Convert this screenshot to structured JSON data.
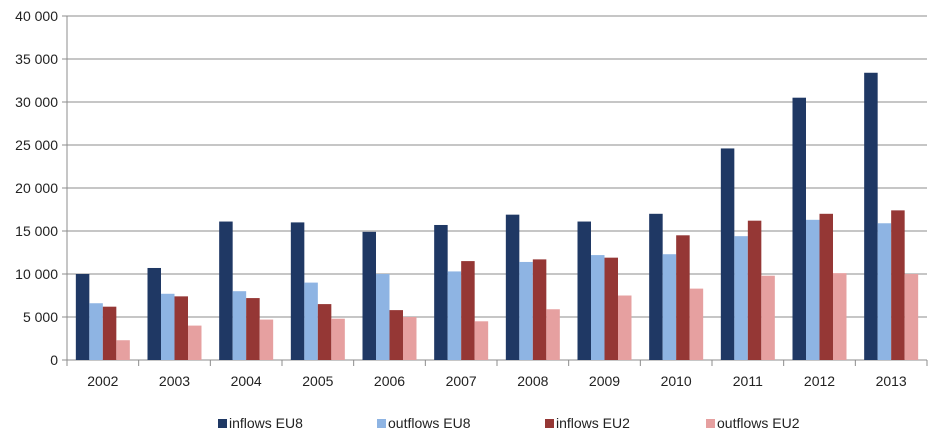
{
  "chart_data": {
    "type": "bar",
    "categories": [
      "2002",
      "2003",
      "2004",
      "2005",
      "2006",
      "2007",
      "2008",
      "2009",
      "2010",
      "2011",
      "2012",
      "2013"
    ],
    "series": [
      {
        "name": "inflows EU8",
        "color": "#1f3864",
        "values": [
          10000,
          10700,
          16100,
          16000,
          14900,
          15700,
          16900,
          16100,
          17000,
          24600,
          30500,
          33400
        ]
      },
      {
        "name": "outflows EU8",
        "color": "#8eb4e3",
        "values": [
          6600,
          7700,
          8000,
          9000,
          10000,
          10300,
          11400,
          12200,
          12300,
          14400,
          16300,
          15900
        ]
      },
      {
        "name": "inflows EU2",
        "color": "#953735",
        "values": [
          6200,
          7400,
          7200,
          6500,
          5800,
          11500,
          11700,
          11900,
          14500,
          16200,
          17000,
          17400
        ]
      },
      {
        "name": "outflows EU2",
        "color": "#e6a0a0",
        "values": [
          2300,
          4000,
          4700,
          4800,
          5000,
          4500,
          5900,
          7500,
          8300,
          9800,
          10100,
          10000
        ]
      }
    ],
    "yticks": [
      "0",
      "5 000",
      "10 000",
      "15 000",
      "20 000",
      "25 000",
      "30 000",
      "35 000",
      "40 000"
    ],
    "ylim": [
      0,
      40000
    ],
    "title": "",
    "xlabel": "",
    "ylabel": "",
    "grid": true,
    "legend_position": "bottom"
  }
}
